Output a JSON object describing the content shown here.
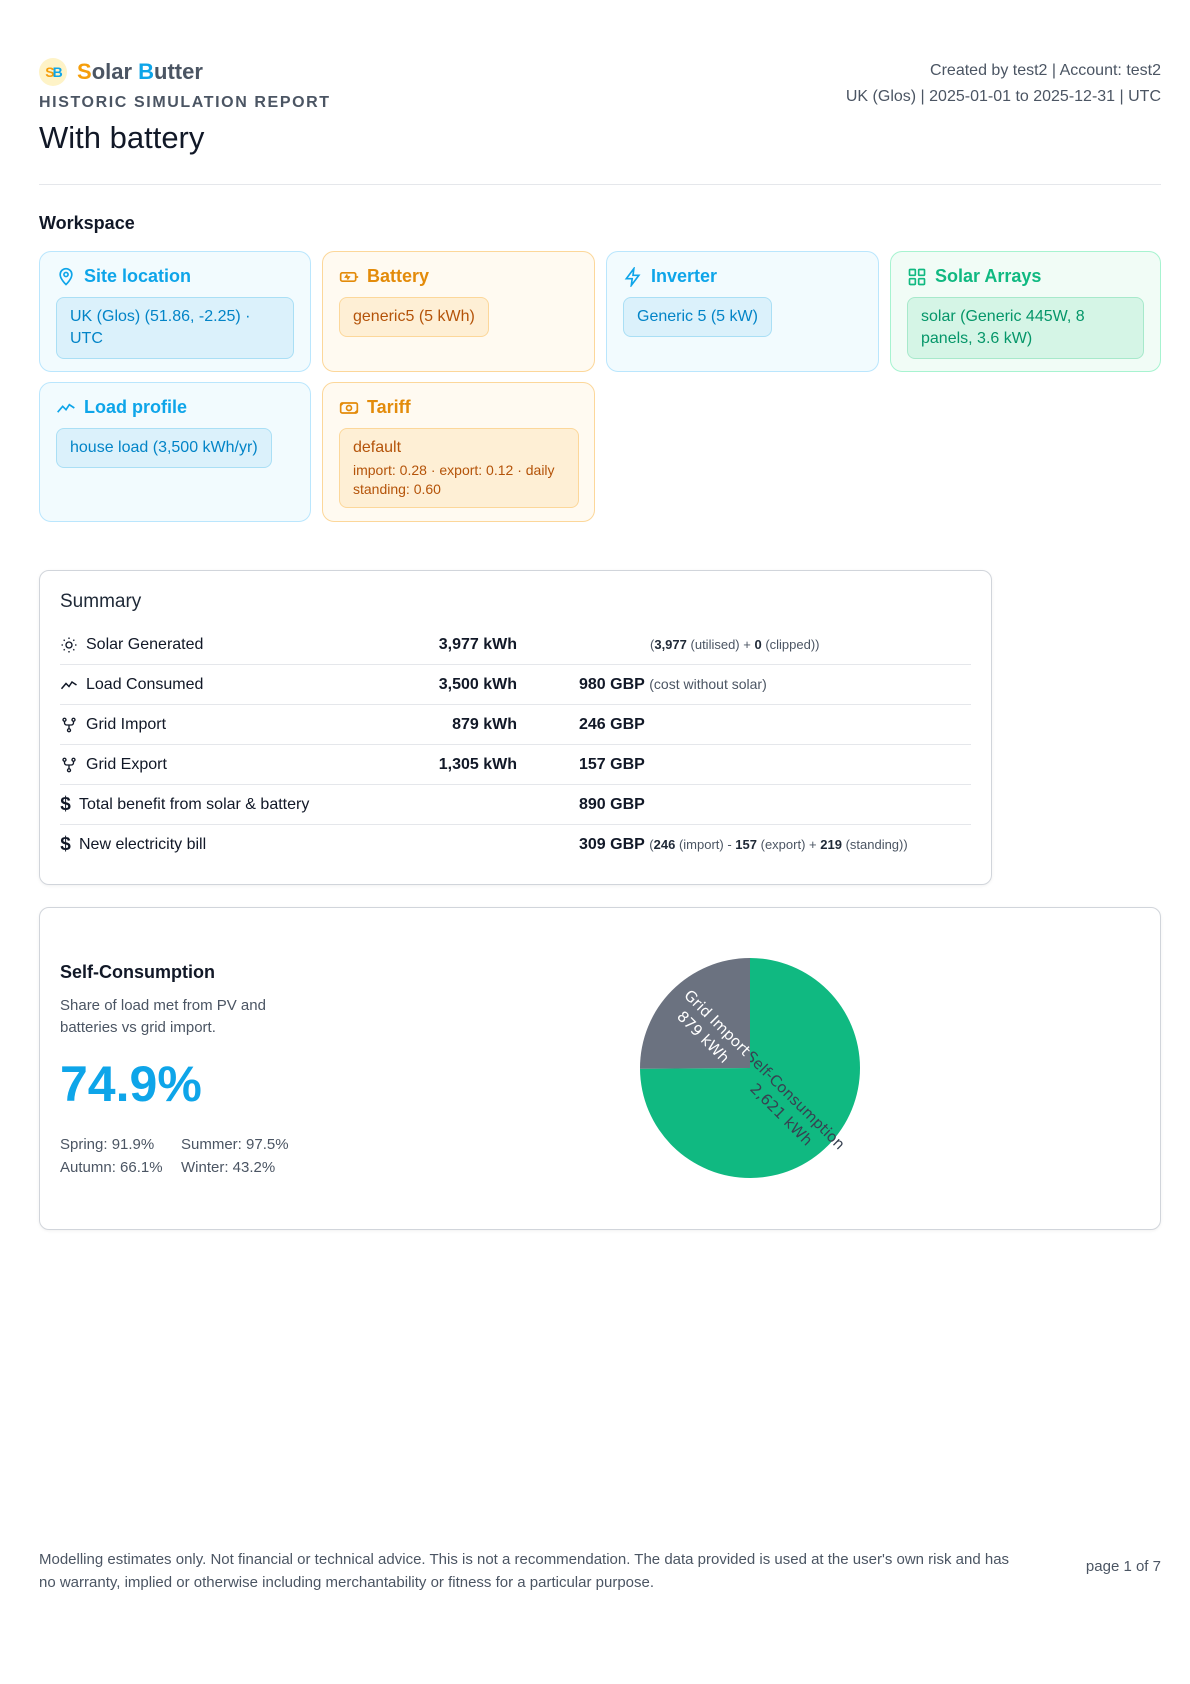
{
  "brand": {
    "name_first": "S",
    "name_rest1": "olar ",
    "name_second": "B",
    "name_rest2": "utter"
  },
  "report": {
    "kind": "HISTORIC SIMULATION REPORT",
    "title": "With battery",
    "created_line": "Created by test2 | Account: test2",
    "meta_line": "UK (Glos) | 2025-01-01 to 2025-12-31 | UTC"
  },
  "workspace": {
    "title": "Workspace",
    "cards": {
      "site": {
        "label": "Site location",
        "icon": "map-pin-icon",
        "chip": "UK (Glos) (51.86, -2.25) · UTC"
      },
      "battery": {
        "label": "Battery",
        "icon": "battery-icon",
        "chip": "generic5 (5 kWh)"
      },
      "inverter": {
        "label": "Inverter",
        "icon": "lightning-icon",
        "chip": "Generic 5 (5 kW)"
      },
      "arrays": {
        "label": "Solar Arrays",
        "icon": "grid-icon",
        "chip": "solar (Generic 445W, 8 panels, 3.6 kW)"
      },
      "load": {
        "label": "Load profile",
        "icon": "trend-icon",
        "chip": "house load (3,500 kWh/yr)"
      },
      "tariff": {
        "label": "Tariff",
        "icon": "banknote-icon",
        "chip": "default",
        "chip_sub": "import: 0.28 · export: 0.12 · daily standing: 0.60"
      }
    }
  },
  "summary": {
    "title": "Summary",
    "solar": {
      "label": "Solar Generated",
      "value": "3,977 kWh",
      "utilised": "3,977",
      "utilised_label": "(utilised) +",
      "clipped": "0",
      "clipped_label": "(clipped))",
      "open": "("
    },
    "load": {
      "label": "Load Consumed",
      "value": "3,500 kWh",
      "cost": "980 GBP",
      "cost_note": "(cost without solar)"
    },
    "import": {
      "label": "Grid Import",
      "value": "879 kWh",
      "cost": "246 GBP"
    },
    "export": {
      "label": "Grid Export",
      "value": "1,305 kWh",
      "cost": "157 GBP"
    },
    "benefit": {
      "label": "Total benefit from solar & battery",
      "cost": "890 GBP"
    },
    "bill": {
      "label": "New electricity bill",
      "cost": "309 GBP",
      "open": "(",
      "import": "246",
      "import_label": "(import) -",
      "export": "157",
      "export_label": "(export) +",
      "standing": "219",
      "standing_label": "(standing))"
    }
  },
  "self_consumption": {
    "title": "Self-Consumption",
    "description": "Share of load met from PV and batteries vs grid import.",
    "percent": "74.9%",
    "seasons": {
      "spring": "Spring: 91.9%",
      "summer": "Summer: 97.5%",
      "autumn": "Autumn: 66.1%",
      "winter": "Winter: 43.2%"
    }
  },
  "chart_data": {
    "type": "pie",
    "slices": [
      {
        "label": "Self-Consumption",
        "value": 2621,
        "value_label": "2,621 kWh",
        "color": "#10b981"
      },
      {
        "label": "Grid Import",
        "value": 879,
        "value_label": "879 kWh",
        "color": "#6b7280"
      }
    ]
  },
  "footer": {
    "disclaimer": "Modelling estimates only. Not financial or technical advice. This is not a recommendation. The data provided is used at the user's own risk and has no warranty, implied or otherwise including merchantability or fitness for a particular purpose.",
    "page": "page 1 of 7"
  }
}
